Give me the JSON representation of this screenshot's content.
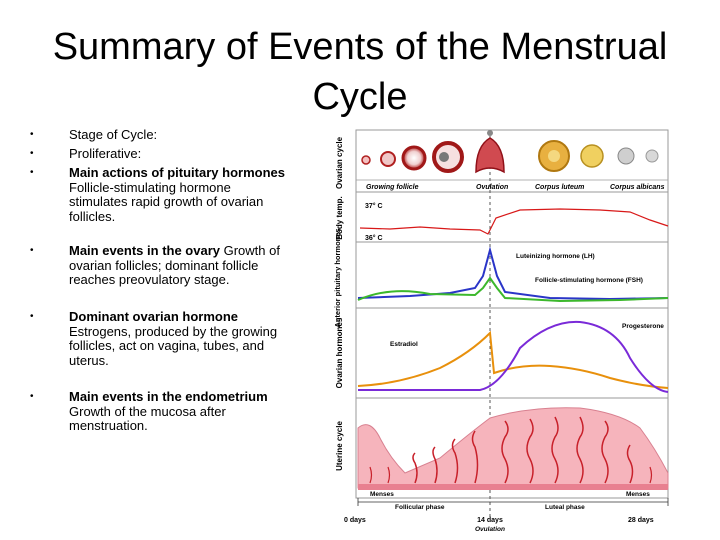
{
  "slide": {
    "title": "Summary of Events of the Menstrual Cycle",
    "bullets": [
      {
        "plain": "Stage of Cycle:"
      },
      {
        "plain": " Proliferative:"
      },
      {
        "bold": "Main actions of pituitary hormones",
        "plain": " Follicle-stimulating hormone stimulates rapid growth of ovarian follicles."
      },
      {
        "bold": "Main events in the ovary",
        "plain": " Growth of ovarian follicles; dominant follicle reaches preovulatory stage."
      },
      {
        "bold": "Dominant ovarian hormone",
        "plain": " Estrogens, produced by the growing follicles, act on vagina, tubes, and uterus."
      },
      {
        "bold": "Main events in the endometrium",
        "plain": " Growth of the mucosa after menstruation."
      }
    ]
  },
  "figure": {
    "row_labels": {
      "ovarian_cycle": "Ovarian cycle",
      "body_temp": "Body temp.",
      "anterior_pituitary": "Anterior pituitary hormones",
      "ovarian_hormones": "Ovarian hormones",
      "uterine_cycle": "Uterine cycle"
    },
    "stage_labels": {
      "growing_follicle": "Growing follicle",
      "ovulation": "Ovulation",
      "corpus_luteum": "Corpus luteum",
      "corpus_albicans": "Corpus albicans"
    },
    "temps": {
      "high": "37° C",
      "low": "36° C"
    },
    "hormone_labels": {
      "lh": "Luteinizing hormone (LH)",
      "fsh": "Follicle-stimulating hormone (FSH)",
      "estradiol": "Estradiol",
      "progesterone": "Progesterone"
    },
    "phase_labels": {
      "menses_start": "Menses",
      "menses_end": "Menses",
      "follicular": "Follicular phase",
      "luteal": "Luteal phase"
    },
    "day_labels": {
      "day0": "0 days",
      "day14": "14 days",
      "ovulation_note": "Ovulation",
      "day28": "28 days"
    },
    "colors": {
      "lh": "#2a35c8",
      "fsh": "#3cb82c",
      "estradiol": "#e8900c",
      "progesterone": "#7a2ad8",
      "temp_line": "#d81818",
      "endometrium": "#f6b4bc",
      "gland": "#c8202a",
      "grid": "#9a9a9a"
    }
  }
}
